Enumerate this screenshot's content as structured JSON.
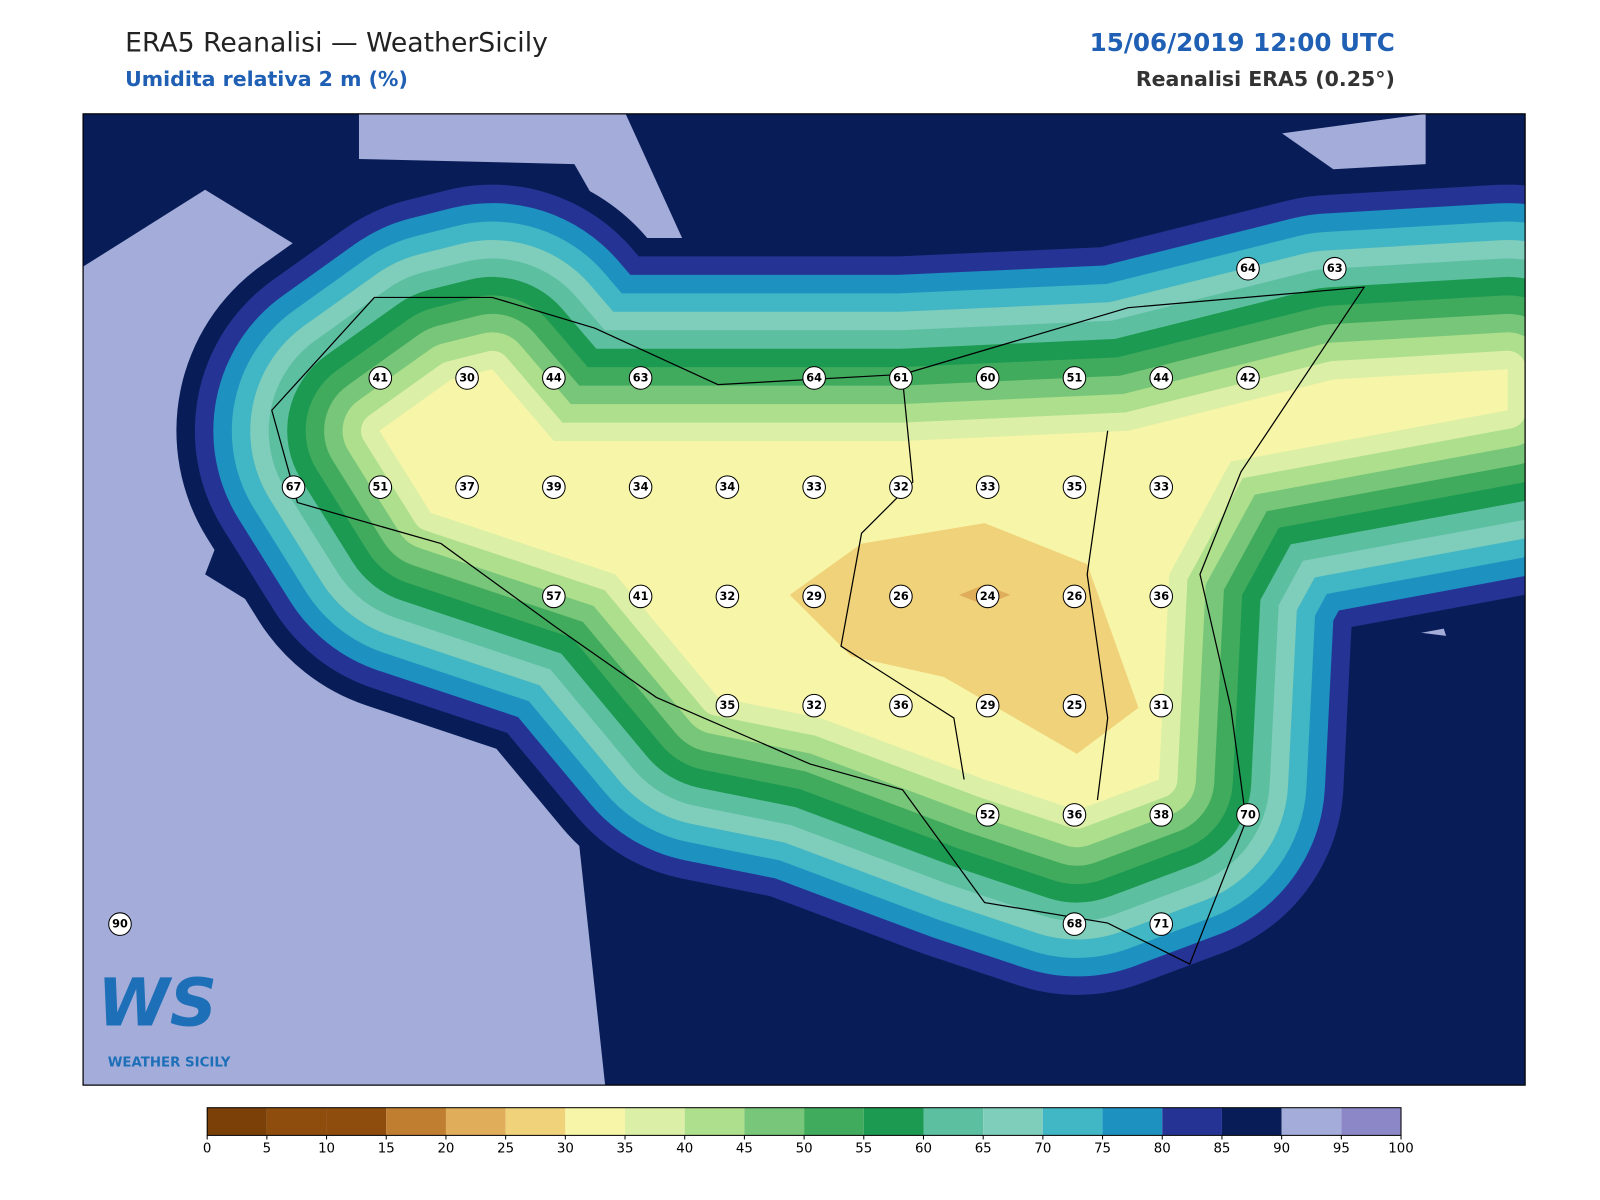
{
  "header": {
    "title": "ERA5 Reanalisi — WeatherSicily",
    "subtitle": "Umidita relativa 2 m (%)",
    "datetime": "15/06/2019 12:00 UTC",
    "source": "Reanalisi ERA5 (0.25°)"
  },
  "stations": {
    "rows": [
      [
        null,
        null,
        null,
        null,
        null,
        null,
        null,
        null,
        null,
        null,
        null,
        null,
        null,
        64,
        63
      ],
      [
        null,
        null,
        null,
        41,
        30,
        44,
        63,
        null,
        64,
        61,
        60,
        51,
        44,
        42,
        null
      ],
      [
        null,
        null,
        67,
        51,
        37,
        39,
        34,
        34,
        33,
        32,
        33,
        35,
        33,
        null,
        null
      ],
      [
        null,
        null,
        null,
        null,
        null,
        57,
        41,
        32,
        29,
        26,
        24,
        26,
        36,
        null,
        null
      ],
      [
        null,
        null,
        null,
        null,
        null,
        null,
        null,
        35,
        32,
        36,
        29,
        25,
        31,
        null,
        null
      ],
      [
        null,
        null,
        null,
        null,
        null,
        null,
        null,
        null,
        null,
        null,
        52,
        36,
        38,
        70,
        null
      ],
      [
        90,
        null,
        null,
        null,
        null,
        null,
        null,
        null,
        null,
        null,
        null,
        68,
        71,
        null,
        null
      ]
    ]
  },
  "colorbar": {
    "ticks": [
      0,
      5,
      10,
      15,
      20,
      25,
      30,
      35,
      40,
      45,
      50,
      55,
      60,
      65,
      70,
      75,
      80,
      85,
      90,
      95,
      100
    ],
    "colors": [
      "#7a4008",
      "#8e4c0d",
      "#8e4c0d",
      "#c07f30",
      "#e0ae5a",
      "#f0d27a",
      "#f7f6a8",
      "#dcefa6",
      "#addf8c",
      "#78c679",
      "#41ab5d",
      "#1d9a51",
      "#5cbfa0",
      "#7fcdbb",
      "#41b6c4",
      "#1d91c0",
      "#253494",
      "#081d58",
      "#a4acd9",
      "#8c88c8"
    ]
  },
  "logo": {
    "main": "WS",
    "sub": "WEATHER SICILY"
  }
}
